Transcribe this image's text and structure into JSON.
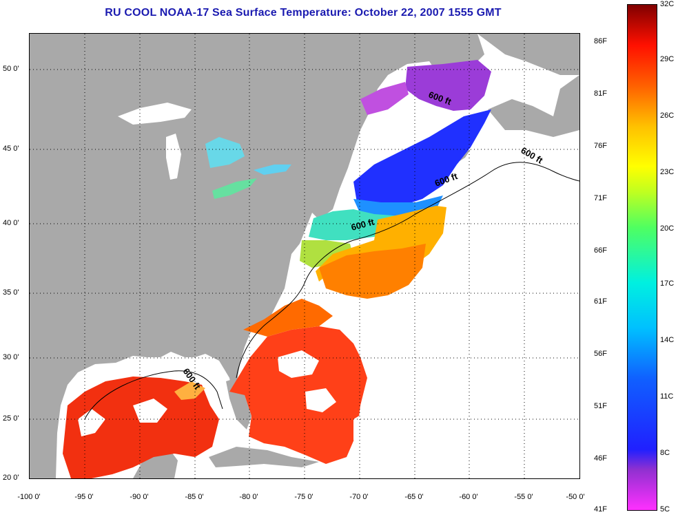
{
  "title": "RU COOL  NOAA-17  Sea Surface Temperature:  October 22, 2007 1555 GMT",
  "map": {
    "longitude_labels": [
      "-100 0'",
      "-95 0'",
      "-90 0'",
      "-85 0'",
      "-80 0'",
      "-75 0'",
      "-70 0'",
      "-65 0'",
      "-60 0'",
      "-55 0'",
      "-50 0'"
    ],
    "latitude_labels": [
      "50 0'",
      "45 0'",
      "40 0'",
      "35 0'",
      "30 0'",
      "25 0'",
      "20 0'"
    ],
    "isobath_label": "600 ft",
    "isobath_annotations": [
      "600 ft",
      "600 ft",
      "600 ft",
      "600 ft",
      "600 ft"
    ],
    "colors": {
      "land": "#a9a9a9",
      "no_data": "#ffffff",
      "grid": "#000000"
    }
  },
  "colorbar": {
    "celsius_labels": [
      "32C",
      "29C",
      "26C",
      "23C",
      "20C",
      "17C",
      "14C",
      "11C",
      "8C",
      "5C"
    ],
    "fahrenheit_labels": [
      "86F",
      "81F",
      "76F",
      "71F",
      "66F",
      "61F",
      "56F",
      "51F",
      "46F",
      "41F"
    ]
  }
}
